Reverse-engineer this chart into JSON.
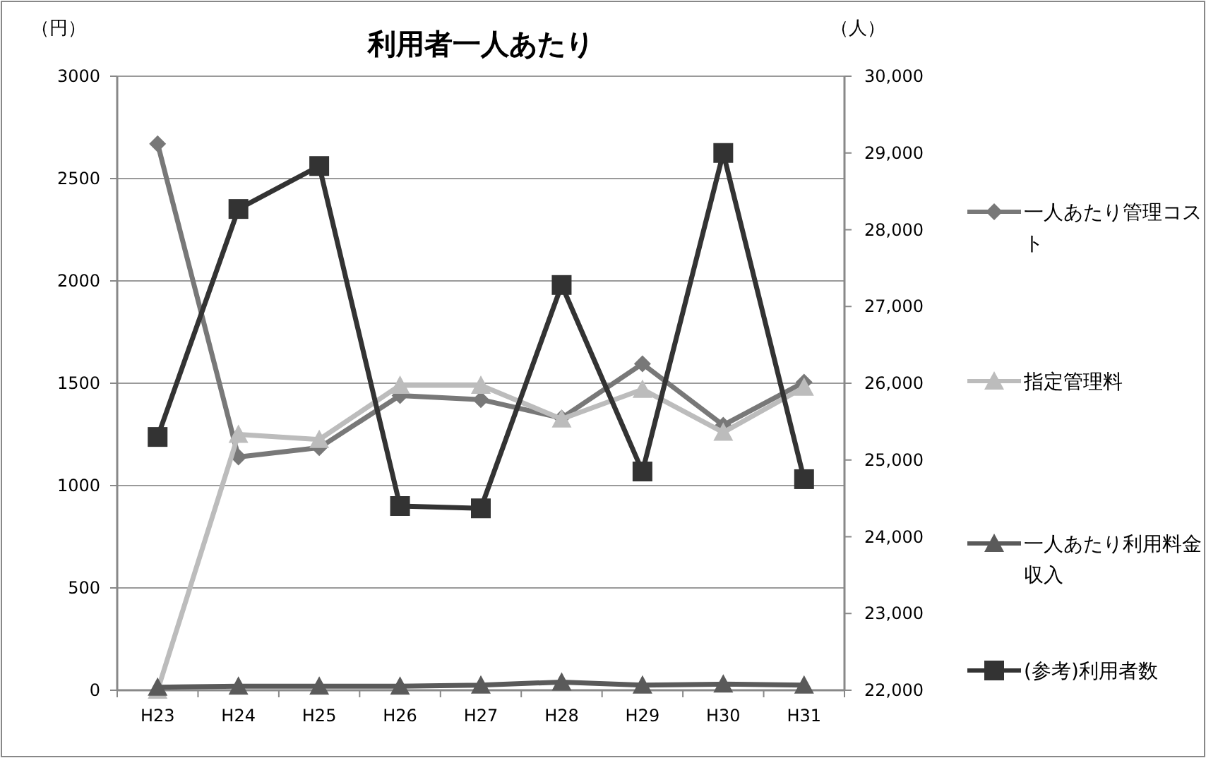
{
  "chart_data": {
    "type": "line",
    "title": "利用者一人あたり",
    "ylabel": "（円）",
    "y2label": "（人）",
    "categories": [
      "H23",
      "H24",
      "H25",
      "H26",
      "H27",
      "H28",
      "H29",
      "H30",
      "H31"
    ],
    "series": [
      {
        "name": "一人あたり管理コスト",
        "color": "#787878",
        "marker": "diamond",
        "values": [
          2670,
          1140,
          1185,
          1440,
          1420,
          1330,
          1595,
          1295,
          1505
        ]
      },
      {
        "name": "指定管理料",
        "color": "#bcbcbc",
        "marker": "triangle",
        "values": [
          0,
          1250,
          1225,
          1490,
          1490,
          1325,
          1470,
          1260,
          1480
        ]
      },
      {
        "name": "一人あたり利用料金収入",
        "color": "#5a5a5a",
        "marker": "triangle",
        "values": [
          15,
          20,
          20,
          20,
          25,
          40,
          25,
          30,
          25
        ]
      },
      {
        "name": "(参考)利用者数",
        "color": "#333333",
        "marker": "square",
        "axis": "y2",
        "values": [
          25300,
          28270,
          28830,
          24400,
          24370,
          27280,
          24850,
          29000,
          24750
        ]
      }
    ],
    "ylim": [
      0,
      3000
    ],
    "yticks": [
      0,
      500,
      1000,
      1500,
      2000,
      2500,
      3000
    ],
    "y2lim": [
      22000,
      30000
    ],
    "y2ticks": [
      {
        "value": 22000,
        "label": "22,000"
      },
      {
        "value": 23000,
        "label": "23,000"
      },
      {
        "value": 24000,
        "label": "24,000"
      },
      {
        "value": 25000,
        "label": "25,000"
      },
      {
        "value": 26000,
        "label": "26,000"
      },
      {
        "value": 27000,
        "label": "27,000"
      },
      {
        "value": 28000,
        "label": "28,000"
      },
      {
        "value": 29000,
        "label": "29,000"
      },
      {
        "value": 30000,
        "label": "30,000"
      }
    ],
    "grid": "y",
    "legend": "right"
  }
}
